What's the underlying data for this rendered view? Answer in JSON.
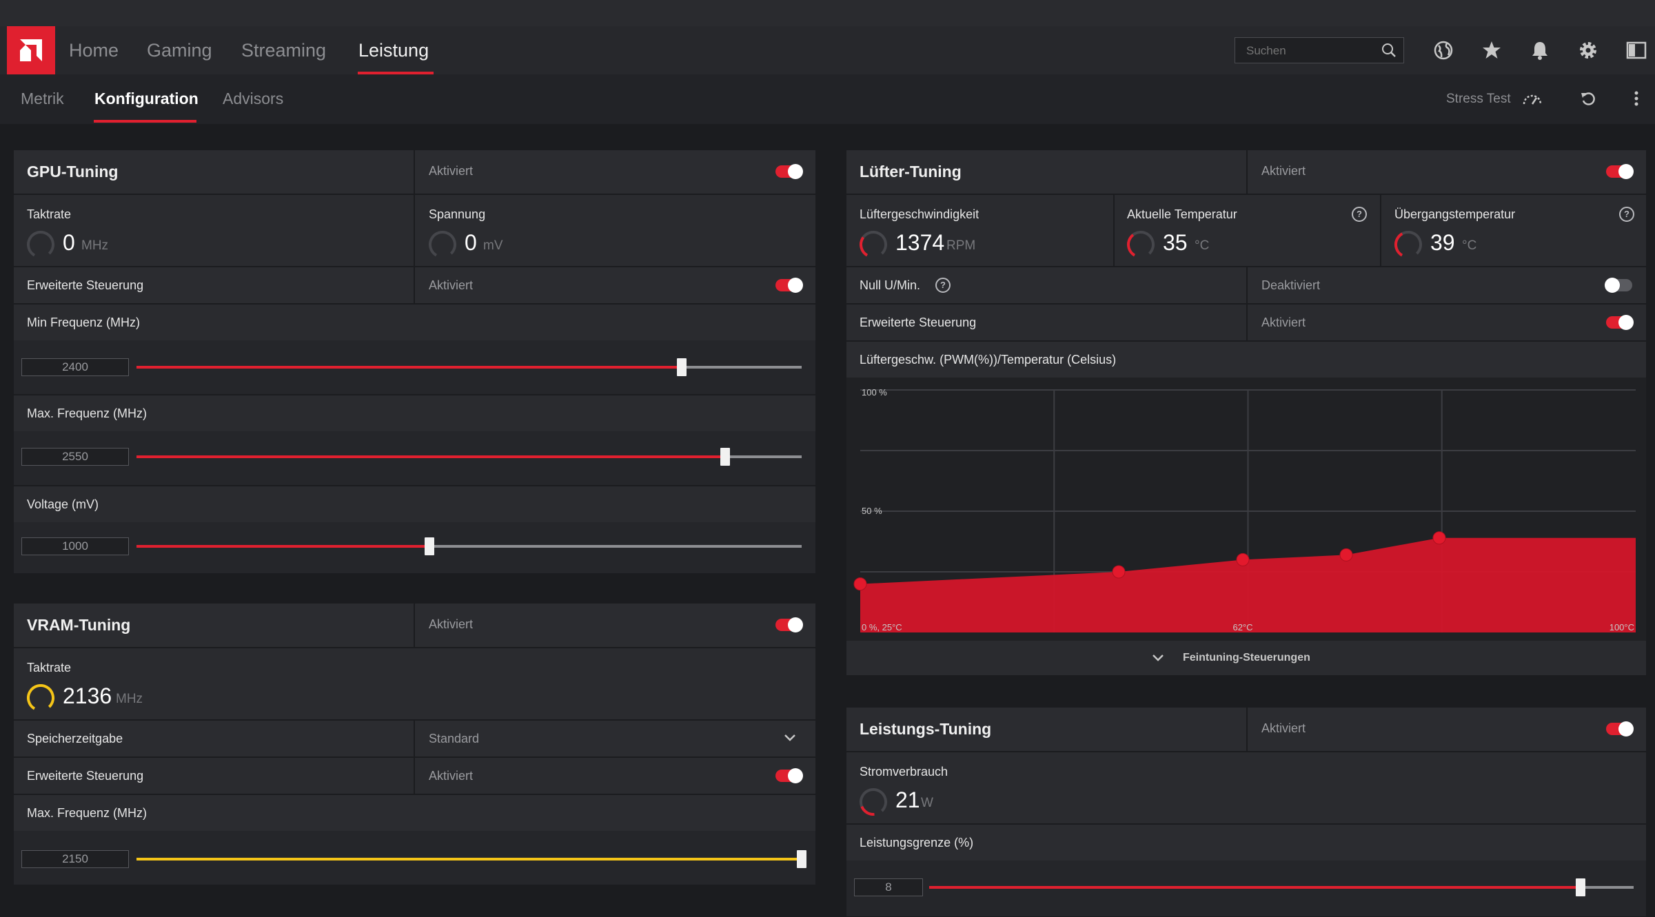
{
  "nav": {
    "tabs": [
      "Home",
      "Gaming",
      "Streaming",
      "Leistung"
    ],
    "active": "Leistung",
    "search_placeholder": "Suchen"
  },
  "subnav": {
    "tabs": [
      "Metrik",
      "Konfiguration",
      "Advisors"
    ],
    "active": "Konfiguration",
    "stress_test": "Stress Test"
  },
  "gpu": {
    "title": "GPU-Tuning",
    "status": "Aktiviert",
    "toggle_on": true,
    "clock_label": "Taktrate",
    "clock_value": "0",
    "clock_unit": "MHz",
    "voltage_label": "Spannung",
    "voltage_value": "0",
    "voltage_unit": "mV",
    "advanced_label": "Erweiterte Steuerung",
    "advanced_status": "Aktiviert",
    "advanced_on": true,
    "min_freq_label": "Min Frequenz (MHz)",
    "min_freq_value": "2400",
    "min_freq_fraction": 0.82,
    "max_freq_label": "Max. Frequenz (MHz)",
    "max_freq_value": "2550",
    "max_freq_fraction": 0.885,
    "voltage_slider_label": "Voltage (mV)",
    "voltage_slider_value": "1000",
    "voltage_slider_fraction": 0.44
  },
  "vram": {
    "title": "VRAM-Tuning",
    "status": "Aktiviert",
    "toggle_on": true,
    "clock_label": "Taktrate",
    "clock_value": "2136",
    "clock_unit": "MHz",
    "timing_label": "Speicherzeitgabe",
    "timing_value": "Standard",
    "advanced_label": "Erweiterte Steuerung",
    "advanced_status": "Aktiviert",
    "advanced_on": true,
    "max_freq_label": "Max. Frequenz (MHz)",
    "max_freq_value": "2150",
    "max_freq_fraction": 1.0
  },
  "fan": {
    "title": "Lüfter-Tuning",
    "status": "Aktiviert",
    "toggle_on": true,
    "speed_label": "Lüftergeschwindigkeit",
    "speed_value": "1374",
    "speed_unit": "RPM",
    "temp_label": "Aktuelle Temperatur",
    "temp_value": "35",
    "temp_unit": "°C",
    "junction_label": "Übergangstemperatur",
    "junction_value": "39",
    "junction_unit": "°C",
    "zero_rpm_label": "Null U/Min.",
    "zero_rpm_status": "Deaktiviert",
    "zero_rpm_on": false,
    "advanced_label": "Erweiterte Steuerung",
    "advanced_status": "Aktiviert",
    "advanced_on": true,
    "curve_label": "Lüftergeschw. (PWM(%))/Temperatur (Celsius)",
    "fine_tuning": "Feintuning-Steuerungen"
  },
  "chart_data": {
    "type": "area",
    "title": "Lüftergeschw. (PWM(%))/Temperatur (Celsius)",
    "x_unit": "°C",
    "y_unit": "%",
    "xlim": [
      25,
      100
    ],
    "ylim": [
      0,
      100
    ],
    "y_tick_labels": [
      "100 %",
      "50 %"
    ],
    "x_tick_labels": [
      "0 %, 25°C",
      "62°C",
      "100°C"
    ],
    "grid": true,
    "series": [
      {
        "x": [
          25,
          50,
          62,
          72,
          81
        ],
        "y": [
          20,
          25,
          30,
          32,
          39
        ]
      }
    ],
    "color": "#d4162a"
  },
  "power": {
    "title": "Leistungs-Tuning",
    "status": "Aktiviert",
    "toggle_on": true,
    "consumption_label": "Stromverbrauch",
    "consumption_value": "21",
    "consumption_unit": "W",
    "limit_label": "Leistungsgrenze (%)",
    "limit_value": "8",
    "limit_fraction": 0.925
  },
  "colors": {
    "accent": "#e0202f",
    "vram_accent": "#f5c518"
  }
}
